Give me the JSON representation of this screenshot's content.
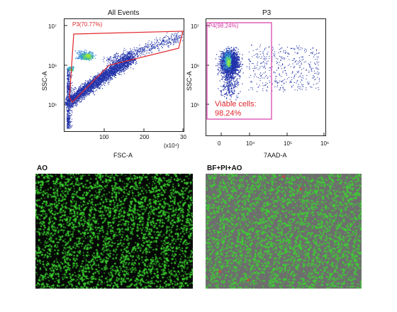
{
  "plot1": {
    "title": "All Events",
    "xlabel": "FSC-A",
    "ylabel": "SSC-A",
    "xmult": "(x10⁴)",
    "xticks": [
      "100",
      "200",
      "30"
    ],
    "yticks": [
      "10⁷",
      "10⁶",
      "10⁵"
    ],
    "gate": "P3(70.77%)",
    "gate_color": "#e1262c"
  },
  "plot2": {
    "title": "P3",
    "xlabel": "7AAD-A",
    "ylabel": "SSC-A",
    "xticks": [
      "0",
      "10⁴",
      "10⁵",
      "10⁶"
    ],
    "yticks": [
      "10⁷",
      "10⁶",
      "10⁵"
    ],
    "gate": "P4(98.24%)",
    "gate_color": "#d63aa6",
    "viable_line1": "Viable cells:",
    "viable_line2": "98.24%"
  },
  "images": {
    "left_label": "AO",
    "right_label": "BF+PI+AO"
  },
  "colors": {
    "scatter": "#2233aa",
    "density_core": "#6fd13c",
    "ao_bg": "#050805",
    "overlay_bg": "#6e6e6e",
    "cell_green": "#3bd52f",
    "cell_red": "#e53a3a"
  }
}
